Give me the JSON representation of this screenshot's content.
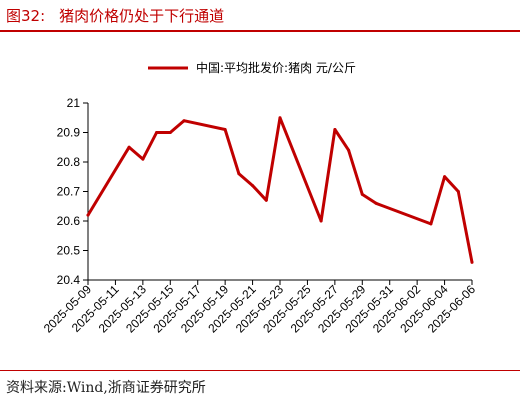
{
  "figure": {
    "label": "图32:",
    "title": "猪肉价格仍处于下行通道",
    "source": "资料来源:Wind,浙商证券研究所"
  },
  "chart_data": {
    "type": "line",
    "title": "",
    "xlabel": "",
    "ylabel": "",
    "legend_position": "top-center",
    "grid": false,
    "ylim": [
      20.4,
      21.0
    ],
    "y_ticks": [
      "20.4",
      "20.5",
      "20.6",
      "20.7",
      "20.8",
      "20.9",
      "21"
    ],
    "x_ticks": [
      "2025-05-09",
      "2025-05-11",
      "2025-05-13",
      "2025-05-15",
      "2025-05-17",
      "2025-05-19",
      "2025-05-21",
      "2025-05-23",
      "2025-05-25",
      "2025-05-27",
      "2025-05-29",
      "2025-05-31",
      "2025-06-02",
      "2025-06-04",
      "2025-06-06"
    ],
    "x_range": [
      "2025-05-09",
      "2025-06-06"
    ],
    "series": [
      {
        "name": "中国:平均批发价:猪肉 元/公斤",
        "color": "#c00000",
        "points": [
          {
            "x": "2025-05-09",
            "y": 20.62
          },
          {
            "x": "2025-05-12",
            "y": 20.85
          },
          {
            "x": "2025-05-13",
            "y": 20.81
          },
          {
            "x": "2025-05-14",
            "y": 20.9
          },
          {
            "x": "2025-05-15",
            "y": 20.9
          },
          {
            "x": "2025-05-16",
            "y": 20.94
          },
          {
            "x": "2025-05-19",
            "y": 20.91
          },
          {
            "x": "2025-05-20",
            "y": 20.76
          },
          {
            "x": "2025-05-21",
            "y": 20.72
          },
          {
            "x": "2025-05-22",
            "y": 20.67
          },
          {
            "x": "2025-05-23",
            "y": 20.95
          },
          {
            "x": "2025-05-26",
            "y": 20.6
          },
          {
            "x": "2025-05-27",
            "y": 20.91
          },
          {
            "x": "2025-05-28",
            "y": 20.84
          },
          {
            "x": "2025-05-29",
            "y": 20.69
          },
          {
            "x": "2025-05-30",
            "y": 20.66
          },
          {
            "x": "2025-06-03",
            "y": 20.59
          },
          {
            "x": "2025-06-04",
            "y": 20.75
          },
          {
            "x": "2025-06-05",
            "y": 20.7
          },
          {
            "x": "2025-06-06",
            "y": 20.46
          }
        ]
      }
    ]
  }
}
